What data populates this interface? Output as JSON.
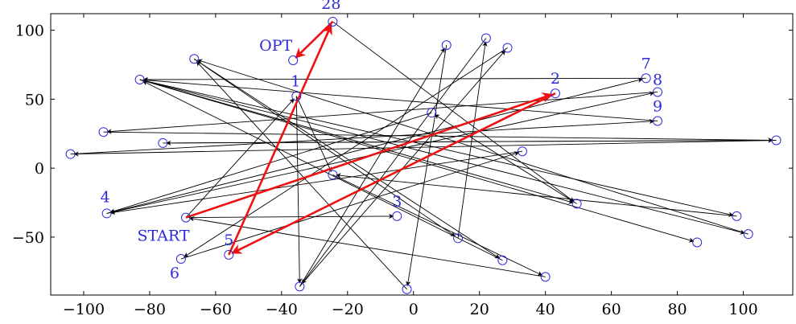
{
  "chart_data": {
    "type": "scatter",
    "title": "",
    "xlabel": "",
    "ylabel": "",
    "xlim": [
      -110,
      115
    ],
    "ylim": [
      -92,
      112
    ],
    "x_ticks": [
      -100,
      -80,
      -60,
      -40,
      -20,
      0,
      20,
      40,
      60,
      80,
      100
    ],
    "y_ticks": [
      -50,
      0,
      50,
      100
    ],
    "tick_text": {
      "-100": "−100",
      "-80": "−80",
      "-60": "−60",
      "-40": "−40",
      "-20": "−20",
      "0": "0",
      "20": "20",
      "40": "40",
      "60": "60",
      "80": "80",
      "100": "100",
      "-50": "−50",
      "50": "50"
    },
    "points": [
      {
        "x": -36.5,
        "y": 78.2
      },
      {
        "x": -24.5,
        "y": 106.2
      },
      {
        "x": -66.5,
        "y": 79.2
      },
      {
        "x": -83,
        "y": 64.2
      },
      {
        "x": -35.5,
        "y": 52.2
      },
      {
        "x": 43,
        "y": 54.2
      },
      {
        "x": 70.5,
        "y": 65.2
      },
      {
        "x": 74,
        "y": 55.2
      },
      {
        "x": 74,
        "y": 34.2
      },
      {
        "x": 10,
        "y": 89.2
      },
      {
        "x": 22,
        "y": 94.2
      },
      {
        "x": 28.5,
        "y": 87.2
      },
      {
        "x": 5.5,
        "y": 40.2
      },
      {
        "x": -94,
        "y": 26.2
      },
      {
        "x": -76,
        "y": 18.2
      },
      {
        "x": -104,
        "y": 10.2
      },
      {
        "x": 110,
        "y": 20.2
      },
      {
        "x": 33,
        "y": 12.2
      },
      {
        "x": -24.5,
        "y": -4.8
      },
      {
        "x": -93,
        "y": -32.8
      },
      {
        "x": -69,
        "y": -35.8
      },
      {
        "x": -5,
        "y": -34.8
      },
      {
        "x": 49.5,
        "y": -25.8
      },
      {
        "x": 98,
        "y": -34.8
      },
      {
        "x": 101.5,
        "y": -47.8
      },
      {
        "x": 86,
        "y": -53.8
      },
      {
        "x": 13.5,
        "y": -50.8
      },
      {
        "x": 27,
        "y": -66.8
      },
      {
        "x": 40,
        "y": -78.8
      },
      {
        "x": -56,
        "y": -62.8
      },
      {
        "x": -70.5,
        "y": -65.8
      },
      {
        "x": -34.5,
        "y": -85.8
      },
      {
        "x": -2,
        "y": -87.8
      }
    ],
    "edges": [
      [
        20,
        4
      ],
      [
        4,
        31
      ],
      [
        31,
        9
      ],
      [
        9,
        32
      ],
      [
        32,
        2
      ],
      [
        2,
        26
      ],
      [
        26,
        10
      ],
      [
        10,
        31
      ],
      [
        31,
        11
      ],
      [
        11,
        30
      ],
      [
        30,
        17
      ],
      [
        17,
        19
      ],
      [
        19,
        6
      ],
      [
        6,
        3
      ],
      [
        3,
        22
      ],
      [
        22,
        12
      ],
      [
        12,
        19
      ],
      [
        19,
        7
      ],
      [
        7,
        13
      ],
      [
        13,
        16
      ],
      [
        16,
        14
      ],
      [
        14,
        16
      ],
      [
        16,
        15
      ],
      [
        15,
        8
      ],
      [
        8,
        3
      ],
      [
        3,
        24
      ],
      [
        24,
        2
      ],
      [
        2,
        27
      ],
      [
        27,
        3
      ],
      [
        3,
        23
      ],
      [
        23,
        18
      ],
      [
        18,
        28
      ],
      [
        28,
        20
      ],
      [
        20,
        21
      ],
      [
        4,
        18
      ],
      [
        1,
        22
      ],
      [
        3,
        25
      ]
    ],
    "optimal_path": [
      [
        20,
        5
      ],
      [
        5,
        29
      ],
      [
        29,
        1
      ],
      [
        1,
        0
      ]
    ],
    "optimal_path_color": "#ee1111",
    "edge_color": "#000000",
    "point_color": "#2b2bd9",
    "point_labels": [
      {
        "point": 1,
        "text": "28"
      },
      {
        "point": 0,
        "text": "OPT"
      },
      {
        "point": 4,
        "text": "1"
      },
      {
        "point": 5,
        "text": "2"
      },
      {
        "point": 21,
        "text": "3"
      },
      {
        "point": 19,
        "text": "4"
      },
      {
        "point": 29,
        "text": "5"
      },
      {
        "point": 30,
        "text": "6"
      },
      {
        "point": 6,
        "text": "7"
      },
      {
        "point": 7,
        "text": "8"
      },
      {
        "point": 8,
        "text": "9"
      },
      {
        "point": 20,
        "text": "START"
      }
    ]
  }
}
